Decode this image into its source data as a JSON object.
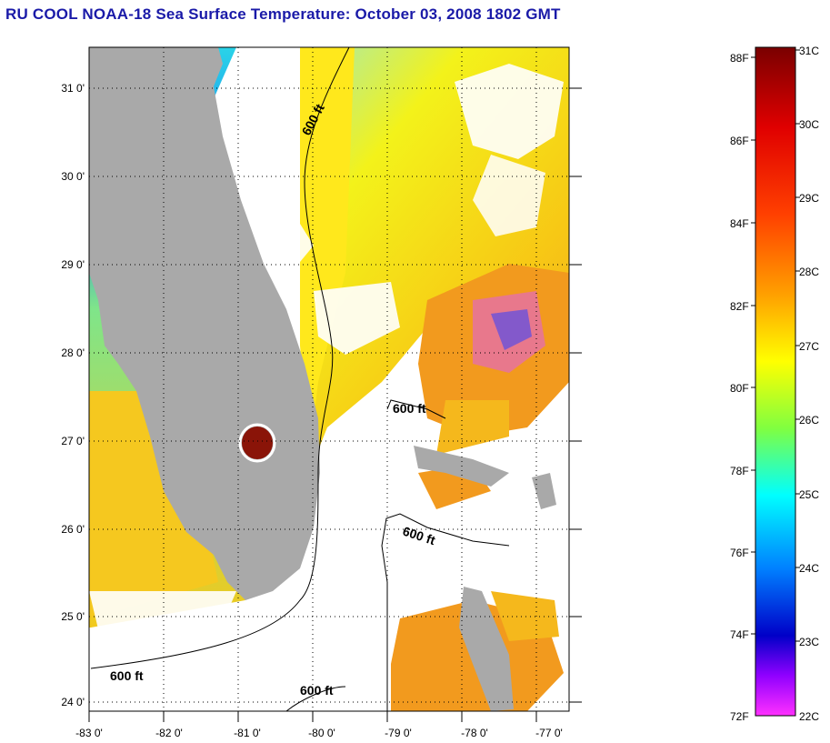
{
  "title": "RU COOL  NOAA-18  Sea Surface Temperature:  October 03, 2008 1802 GMT",
  "lat_labels": [
    "31 0'",
    "30 0'",
    "29 0'",
    "28 0'",
    "27 0'",
    "26 0'",
    "25 0'",
    "24 0'"
  ],
  "lon_labels": [
    "-83 0'",
    "-82 0'",
    "-81 0'",
    "-80 0'",
    "-79 0'",
    "-78 0'",
    "-77 0'"
  ],
  "contour_labels": [
    "600 ft",
    "600 ft",
    "600 ft",
    "600 ft",
    "600 ft"
  ],
  "colorbar": {
    "fahrenheit": [
      "88F",
      "86F",
      "84F",
      "82F",
      "80F",
      "78F",
      "76F",
      "74F",
      "72F"
    ],
    "celsius": [
      "31C",
      "30C",
      "29C",
      "28C",
      "27C",
      "26C",
      "25C",
      "24C",
      "23C",
      "22C"
    ]
  },
  "colors": {
    "title": "#1a1aa8",
    "land": "#a9a9a9",
    "grid": "#000000"
  }
}
